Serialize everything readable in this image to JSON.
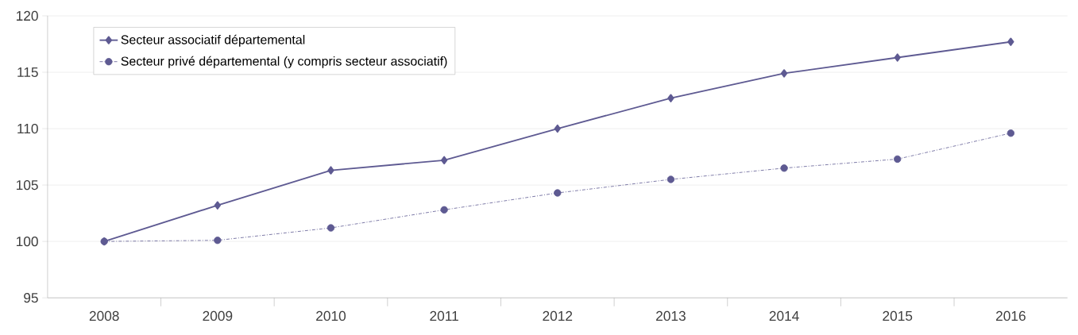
{
  "chart_data": {
    "type": "line",
    "categories": [
      "2008",
      "2009",
      "2010",
      "2011",
      "2012",
      "2013",
      "2014",
      "2015",
      "2016"
    ],
    "series": [
      {
        "name": "Secteur associatif départemental",
        "color": "#5e5a92",
        "marker": "diamond",
        "line_style": "solid",
        "values": [
          100,
          103.2,
          106.3,
          107.2,
          110.0,
          112.7,
          114.9,
          116.3,
          117.7
        ]
      },
      {
        "name": "Secteur privé départemental (y compris secteur associatif)",
        "color": "#5e5a92",
        "marker": "circle",
        "line_style": "dashed",
        "values": [
          100,
          100.1,
          101.2,
          102.8,
          104.3,
          105.5,
          106.5,
          107.3,
          109.6
        ]
      }
    ],
    "ylim": [
      95,
      120
    ],
    "yticks": [
      95,
      100,
      105,
      110,
      115,
      120
    ],
    "grid": "y",
    "legend": "top left"
  }
}
